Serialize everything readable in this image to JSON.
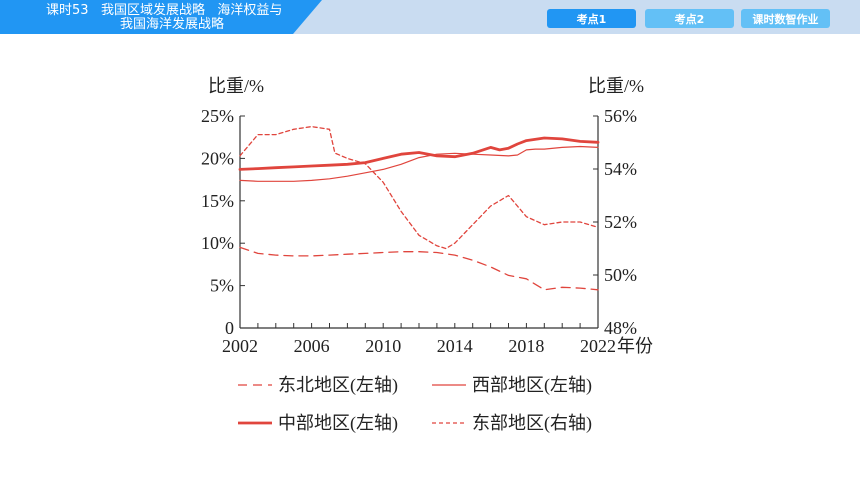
{
  "header": {
    "title_line1": "课时53   我国区域发展战略   海洋权益与",
    "title_line2": "我国海洋发展战略",
    "tabs": [
      "考点1",
      "考点2",
      "课时数智作业"
    ]
  },
  "chart_data": {
    "type": "line",
    "ylabel_left": "比重/%",
    "ylabel_right": "比重/%",
    "xlabel": "年份",
    "xlim": [
      2002,
      2022
    ],
    "ylim_left": [
      0,
      25
    ],
    "ylim_right": [
      48,
      56
    ],
    "x_ticks": [
      "2002",
      "2006",
      "2010",
      "2014",
      "2018",
      "2022"
    ],
    "y_ticks_left": [
      "0",
      "5%",
      "10%",
      "15%",
      "20%",
      "25%"
    ],
    "y_ticks_right": [
      "48%",
      "50%",
      "52%",
      "54%",
      "56%"
    ],
    "series": [
      {
        "name": "东北地区(左轴)",
        "axis": "left",
        "color": "#e0453d",
        "style": "longdash",
        "width": 1.3,
        "x": [
          2002,
          2003,
          2004,
          2005,
          2006,
          2007,
          2008,
          2009,
          2010,
          2011,
          2012,
          2013,
          2014,
          2015,
          2016,
          2017,
          2018,
          2019,
          2020,
          2021,
          2022
        ],
        "y": [
          9.5,
          8.8,
          8.6,
          8.5,
          8.5,
          8.6,
          8.7,
          8.8,
          8.9,
          9.0,
          9.0,
          8.9,
          8.6,
          8.0,
          7.2,
          6.2,
          5.8,
          4.5,
          4.8,
          4.7,
          4.5
        ]
      },
      {
        "name": "西部地区(左轴)",
        "axis": "left",
        "color": "#e0453d",
        "style": "solid",
        "width": 1.2,
        "x": [
          2002,
          2003,
          2004,
          2005,
          2006,
          2007,
          2008,
          2009,
          2010,
          2011,
          2012,
          2013,
          2014,
          2015,
          2016,
          2017,
          2017.5,
          2018,
          2018.5,
          2019,
          2020,
          2021,
          2022
        ],
        "y": [
          17.4,
          17.3,
          17.3,
          17.3,
          17.4,
          17.6,
          17.9,
          18.3,
          18.7,
          19.3,
          20.1,
          20.5,
          20.6,
          20.5,
          20.4,
          20.3,
          20.4,
          21.0,
          21.1,
          21.1,
          21.3,
          21.4,
          21.3
        ]
      },
      {
        "name": "中部地区(左轴)",
        "axis": "left",
        "color": "#e0453d",
        "style": "solid",
        "width": 2.8,
        "x": [
          2002,
          2003,
          2004,
          2005,
          2006,
          2007,
          2008,
          2009,
          2010,
          2011,
          2012,
          2013,
          2014,
          2015,
          2016,
          2016.5,
          2017,
          2017.5,
          2018,
          2019,
          2020,
          2021,
          2022
        ],
        "y": [
          18.7,
          18.8,
          18.9,
          19.0,
          19.1,
          19.2,
          19.3,
          19.5,
          20.0,
          20.5,
          20.7,
          20.3,
          20.2,
          20.6,
          21.3,
          21.0,
          21.2,
          21.7,
          22.1,
          22.4,
          22.3,
          22.0,
          21.9
        ]
      },
      {
        "name": "东部地区(右轴)",
        "axis": "right",
        "color": "#e0453d",
        "style": "shortdash",
        "width": 1.3,
        "x": [
          2002,
          2003,
          2004,
          2005,
          2006,
          2007,
          2007.3,
          2008,
          2009,
          2010,
          2011,
          2012,
          2013,
          2013.5,
          2014,
          2015,
          2016,
          2017,
          2018,
          2019,
          2020,
          2021,
          2022
        ],
        "y": [
          54.5,
          55.3,
          55.3,
          55.5,
          55.6,
          55.5,
          54.6,
          54.4,
          54.2,
          53.5,
          52.4,
          51.5,
          51.1,
          51.0,
          51.2,
          51.9,
          52.6,
          53.0,
          52.2,
          51.9,
          52.0,
          52.0,
          51.8
        ]
      }
    ],
    "legend": {
      "placement": "bottom",
      "rows": [
        [
          "东北地区(左轴)",
          "西部地区(左轴)"
        ],
        [
          "中部地区(左轴)",
          "东部地区(右轴)"
        ]
      ]
    }
  }
}
